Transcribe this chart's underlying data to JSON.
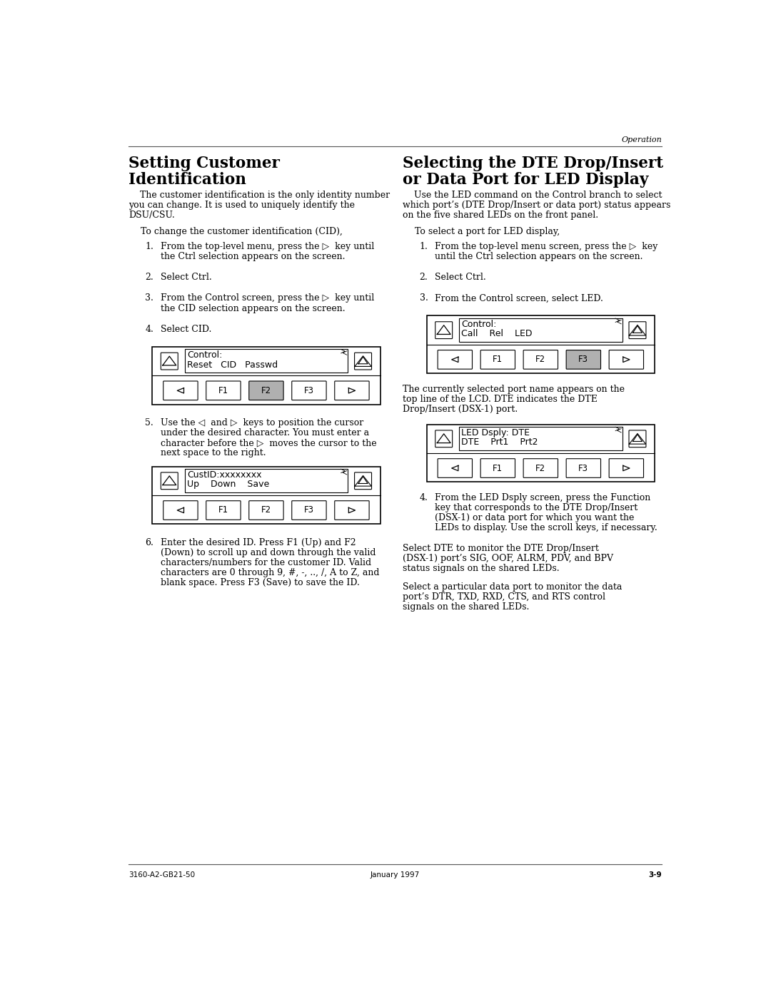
{
  "page_width": 10.8,
  "page_height": 13.97,
  "bg_color": "#ffffff",
  "header_text": "Operation",
  "footer_left": "3160-A2-GB21-50",
  "footer_center": "January 1997",
  "footer_right": "3-9",
  "left_title_line1": "Setting Customer",
  "left_title_line2": "Identification",
  "right_title_line1": "Selecting the DTE Drop/Insert",
  "right_title_line2": "or Data Port for LED Display",
  "left_body": [
    "    The customer identification is the only identity number",
    "you can change. It is used to uniquely identify the",
    "DSU/CSU."
  ],
  "left_intro": "To change the customer identification (CID),",
  "left_steps": [
    [
      "1.",
      "From the top-level menu, press the ▷  key until\nthe Ctrl selection appears on the screen."
    ],
    [
      "2.",
      "Select Ctrl."
    ],
    [
      "3.",
      "From the Control screen, press the ▷  key until\nthe CID selection appears on the screen."
    ],
    [
      "4.",
      "Select CID."
    ]
  ],
  "left_step5": [
    "5.",
    "Use the ◁  and ▷  keys to position the cursor\nunder the desired character. You must enter a\ncharacter before the ▷  moves the cursor to the\nnext space to the right."
  ],
  "left_step6": [
    "6.",
    "Enter the desired ID. Press F1 (Up) and F2\n(Down) to scroll up and down through the valid\ncharacters/numbers for the customer ID. Valid\ncharacters are 0 through 9, #, -, .., /, A to Z, and\nblank space. Press F3 (Save) to save the ID."
  ],
  "right_body": [
    "    Use the LED command on the Control branch to select",
    "which port’s (DTE Drop/Insert or data port) status appears",
    "on the five shared LEDs on the front panel."
  ],
  "right_intro": "To select a port for LED display,",
  "right_steps": [
    [
      "1.",
      "From the top-level menu screen, press the ▷  key\nuntil the Ctrl selection appears on the screen."
    ],
    [
      "2.",
      "Select Ctrl."
    ],
    [
      "3.",
      "From the Control screen, select LED."
    ]
  ],
  "right_caption1": "The currently selected port name appears on the\ntop line of the LCD. DTE indicates the DTE\nDrop/Insert (DSX-1) port.",
  "right_step4": [
    "4.",
    "From the LED Dsply screen, press the Function\nkey that corresponds to the DTE Drop/Insert\n(DSX-1) or data port for which you want the\nLEDs to display. Use the scroll keys, if necessary."
  ],
  "right_caption2": "Select DTE to monitor the DTE Drop/Insert\n(DSX-1) port’s SIG, OOF, ALRM, PDV, and BPV\nstatus signals on the shared LEDs.",
  "right_caption3": "Select a particular data port to monitor the data\nport’s DTR, TXD, RXD, CTS, and RTS control\nsignals on the shared LEDs."
}
